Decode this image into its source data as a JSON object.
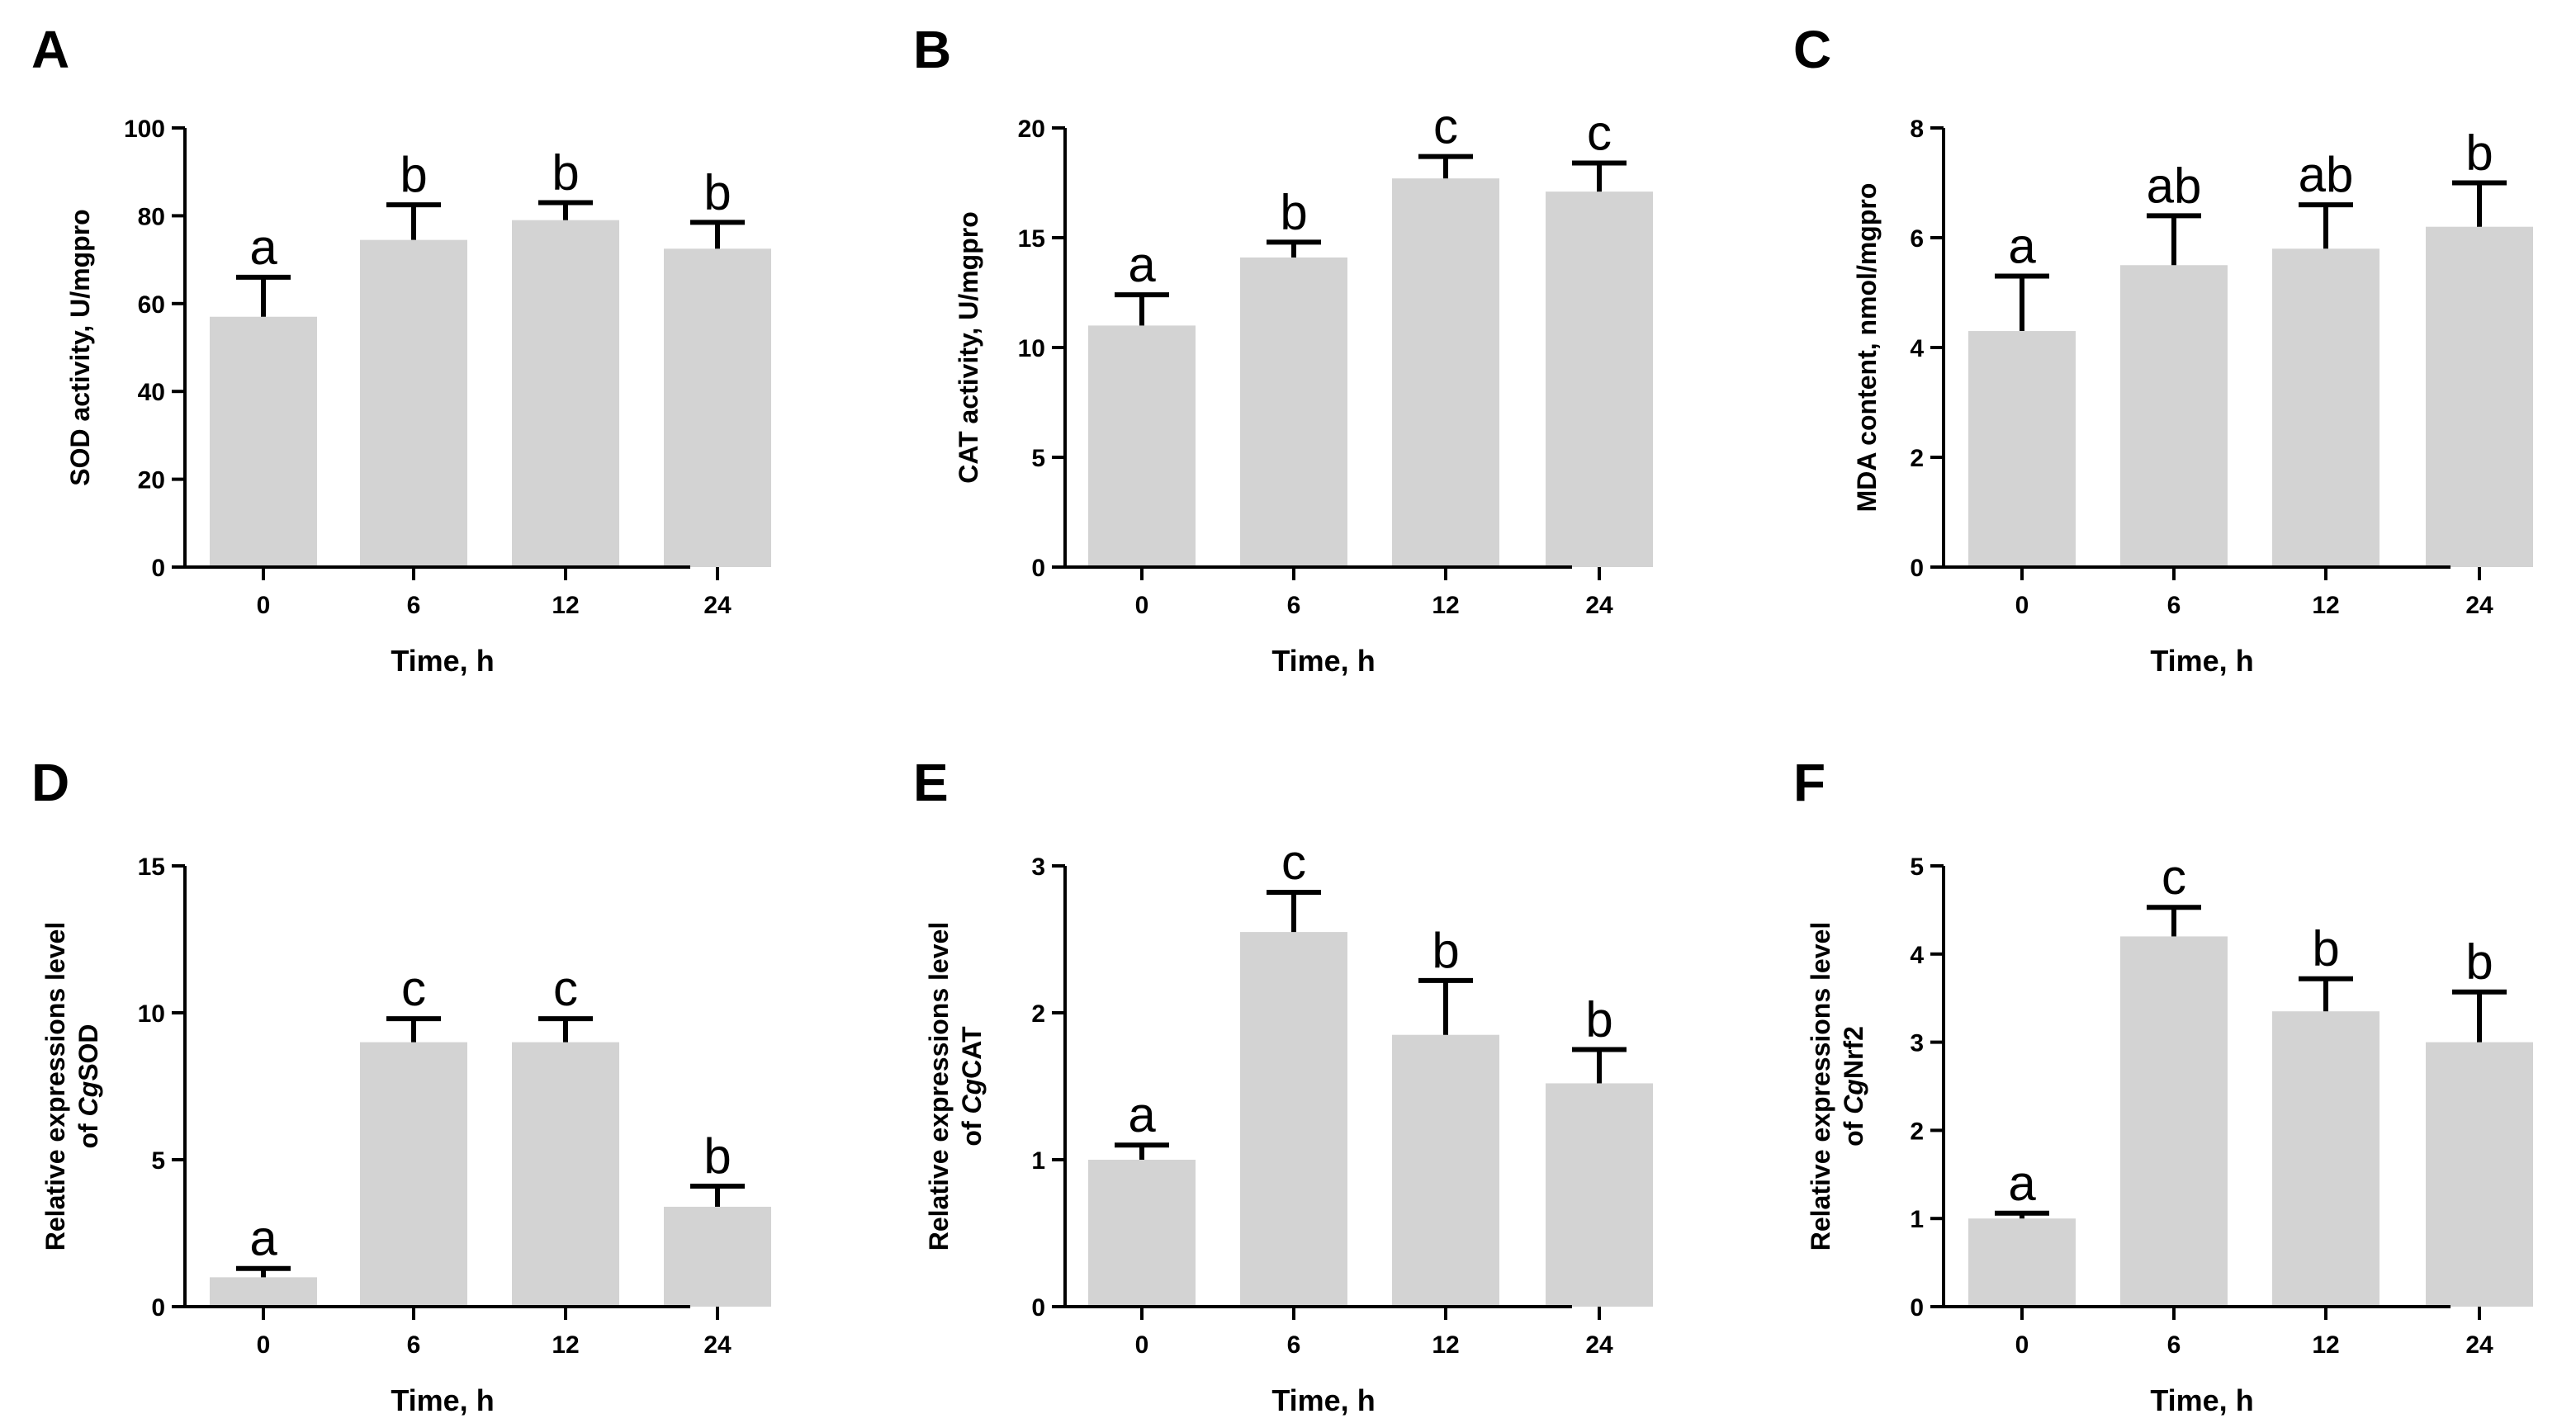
{
  "chart_data": [
    {
      "panel": "A",
      "type": "bar",
      "categories": [
        "0",
        "6",
        "12",
        "24"
      ],
      "values": [
        57,
        74.5,
        79,
        72.5
      ],
      "errors": [
        9,
        8,
        4,
        6
      ],
      "significance": [
        "a",
        "b",
        "b",
        "b"
      ],
      "ylim": [
        0,
        100
      ],
      "yticks": [
        "0",
        "20",
        "40",
        "60",
        "80",
        "100"
      ],
      "xlabel": "Time, h",
      "ylabel": [
        "SOD activity, U/mgpro"
      ]
    },
    {
      "panel": "B",
      "type": "bar",
      "categories": [
        "0",
        "6",
        "12",
        "24"
      ],
      "values": [
        11,
        14.1,
        17.7,
        17.1
      ],
      "errors": [
        1.4,
        0.7,
        1.0,
        1.3
      ],
      "significance": [
        "a",
        "b",
        "c",
        "c"
      ],
      "ylim": [
        0,
        20
      ],
      "yticks": [
        "0",
        "5",
        "10",
        "15",
        "20"
      ],
      "xlabel": "Time, h",
      "ylabel": [
        "CAT activity, U/mgpro"
      ]
    },
    {
      "panel": "C",
      "type": "bar",
      "categories": [
        "0",
        "6",
        "12",
        "24"
      ],
      "values": [
        4.3,
        5.5,
        5.8,
        6.2
      ],
      "errors": [
        1.0,
        0.9,
        0.8,
        0.8
      ],
      "significance": [
        "a",
        "ab",
        "ab",
        "b"
      ],
      "ylim": [
        0,
        8
      ],
      "yticks": [
        "0",
        "2",
        "4",
        "6",
        "8"
      ],
      "xlabel": "Time, h",
      "ylabel": [
        "MDA content, nmol/mgpro"
      ]
    },
    {
      "panel": "D",
      "type": "bar",
      "categories": [
        "0",
        "6",
        "12",
        "24"
      ],
      "values": [
        1.0,
        9.0,
        9.0,
        3.4
      ],
      "errors": [
        0.3,
        0.8,
        0.8,
        0.7
      ],
      "significance": [
        "a",
        "c",
        "c",
        "b"
      ],
      "ylim": [
        0,
        15
      ],
      "yticks": [
        "0",
        "5",
        "10",
        "15"
      ],
      "xlabel": "Time, h",
      "ylabel": [
        "Relative  expressions level",
        "of ",
        "Cg",
        "SOD"
      ]
    },
    {
      "panel": "E",
      "type": "bar",
      "categories": [
        "0",
        "6",
        "12",
        "24"
      ],
      "values": [
        1.0,
        2.55,
        1.85,
        1.52
      ],
      "errors": [
        0.1,
        0.27,
        0.37,
        0.23
      ],
      "significance": [
        "a",
        "c",
        "b",
        "b"
      ],
      "ylim": [
        0,
        3
      ],
      "yticks": [
        "0",
        "1",
        "2",
        "3"
      ],
      "xlabel": "Time, h",
      "ylabel": [
        "Relative  expressions level",
        "of ",
        "Cg",
        "CAT"
      ]
    },
    {
      "panel": "F",
      "type": "bar",
      "categories": [
        "0",
        "6",
        "12",
        "24"
      ],
      "values": [
        1.0,
        4.2,
        3.35,
        3.0
      ],
      "errors": [
        0.06,
        0.33,
        0.37,
        0.57
      ],
      "significance": [
        "a",
        "c",
        "b",
        "b"
      ],
      "ylim": [
        0,
        5
      ],
      "yticks": [
        "0",
        "1",
        "2",
        "3",
        "4",
        "5"
      ],
      "xlabel": "Time, h",
      "ylabel": [
        "Relative  expressions level",
        "of ",
        "Cg",
        "Nrf2"
      ]
    }
  ]
}
